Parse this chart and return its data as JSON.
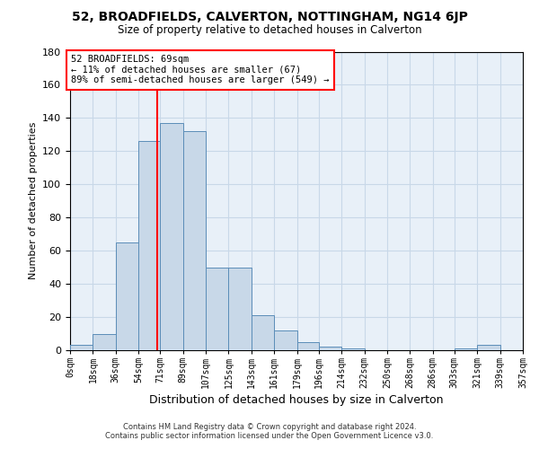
{
  "title": "52, BROADFIELDS, CALVERTON, NOTTINGHAM, NG14 6JP",
  "subtitle": "Size of property relative to detached houses in Calverton",
  "xlabel": "Distribution of detached houses by size in Calverton",
  "ylabel": "Number of detached properties",
  "bar_color": "#c8d8e8",
  "bar_edge_color": "#5b8db8",
  "grid_color": "#c8d8e8",
  "background_color": "#e8f0f8",
  "bin_edges": [
    0,
    18,
    36,
    54,
    71,
    89,
    107,
    125,
    143,
    161,
    179,
    196,
    214,
    232,
    250,
    268,
    286,
    303,
    321,
    339,
    357
  ],
  "bin_labels": [
    "0sqm",
    "18sqm",
    "36sqm",
    "54sqm",
    "71sqm",
    "89sqm",
    "107sqm",
    "125sqm",
    "143sqm",
    "161sqm",
    "179sqm",
    "196sqm",
    "214sqm",
    "232sqm",
    "250sqm",
    "268sqm",
    "286sqm",
    "303sqm",
    "321sqm",
    "339sqm",
    "357sqm"
  ],
  "counts": [
    3,
    10,
    65,
    126,
    137,
    132,
    50,
    50,
    21,
    12,
    5,
    2,
    1,
    0,
    0,
    0,
    0,
    1,
    3,
    0
  ],
  "vline_x": 69,
  "annotation_title": "52 BROADFIELDS: 69sqm",
  "annotation_line1": "← 11% of detached houses are smaller (67)",
  "annotation_line2": "89% of semi-detached houses are larger (549) →",
  "annotation_box_color": "white",
  "annotation_box_edge": "red",
  "vline_color": "red",
  "ylim": [
    0,
    180
  ],
  "yticks": [
    0,
    20,
    40,
    60,
    80,
    100,
    120,
    140,
    160,
    180
  ],
  "footer1": "Contains HM Land Registry data © Crown copyright and database right 2024.",
  "footer2": "Contains public sector information licensed under the Open Government Licence v3.0."
}
